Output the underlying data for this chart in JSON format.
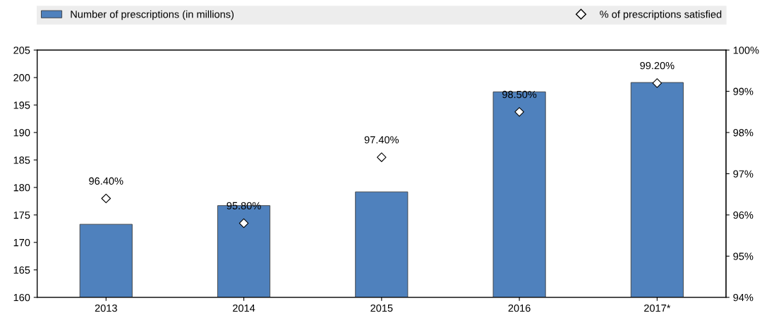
{
  "chart_data": {
    "type": "bar",
    "categories": [
      "2013",
      "2014",
      "2015",
      "2016",
      "2017*"
    ],
    "series": [
      {
        "name": "Number of prescriptions (in millions)",
        "color": "#4f81bd",
        "values": [
          173.3,
          176.7,
          179.2,
          197.4,
          199.1
        ]
      },
      {
        "name": "% of prescriptions satisfied",
        "type": "scatter",
        "axis": "y2",
        "color": "#ffffff",
        "marker": "diamond",
        "values": [
          96.4,
          95.8,
          97.4,
          98.5,
          99.2
        ],
        "value_labels": [
          "96.40%",
          "95.80%",
          "97.40%",
          "98.50%",
          "99.20%"
        ]
      }
    ],
    "ylim": [
      160,
      205
    ],
    "yticks": [
      160,
      165,
      170,
      175,
      180,
      185,
      190,
      195,
      200,
      205
    ],
    "y2lim": [
      94,
      100
    ],
    "y2ticks": [
      {
        "value": 94,
        "label": "94%"
      },
      {
        "value": 95,
        "label": "95%"
      },
      {
        "value": 96,
        "label": "96%"
      },
      {
        "value": 97,
        "label": "97%"
      },
      {
        "value": 98,
        "label": "98%"
      },
      {
        "value": 99,
        "label": "99%"
      },
      {
        "value": 100,
        "label": "100%"
      }
    ],
    "grid": false,
    "legend": "top"
  }
}
